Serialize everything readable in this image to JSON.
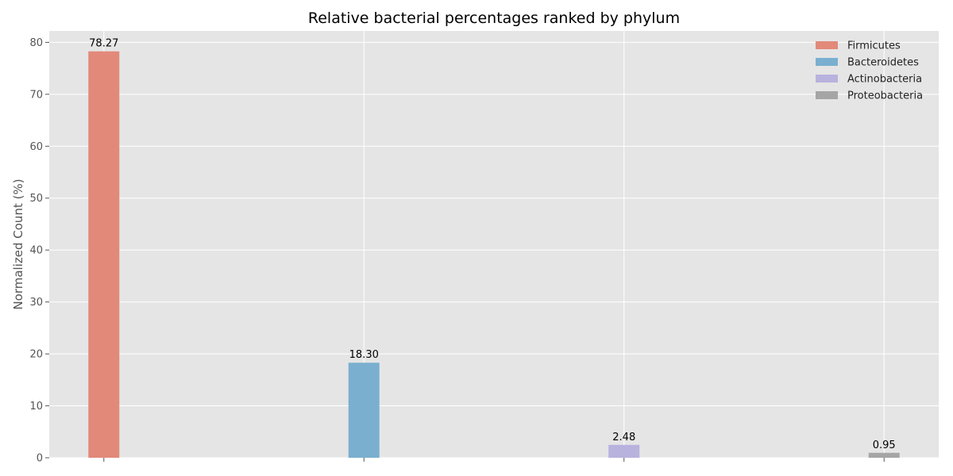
{
  "chart_data": {
    "type": "bar",
    "title": "Relative bacterial percentages ranked by phylum",
    "xlabel": "",
    "ylabel": "Normalized Count (%)",
    "ylim": [
      0,
      82.2
    ],
    "yticks": [
      0,
      10,
      20,
      30,
      40,
      50,
      60,
      70,
      80
    ],
    "grid": true,
    "legend_position": "top-right",
    "series": [
      {
        "name": "Firmicutes",
        "value": 78.27,
        "label": "78.27",
        "color": "#e2897a"
      },
      {
        "name": "Bacteroidetes",
        "value": 18.3,
        "label": "18.30",
        "color": "#7aafcf"
      },
      {
        "name": "Actinobacteria",
        "value": 2.48,
        "label": "2.48",
        "color": "#b8b2de"
      },
      {
        "name": "Proteobacteria",
        "value": 0.95,
        "label": "0.95",
        "color": "#a5a5a5"
      }
    ]
  }
}
